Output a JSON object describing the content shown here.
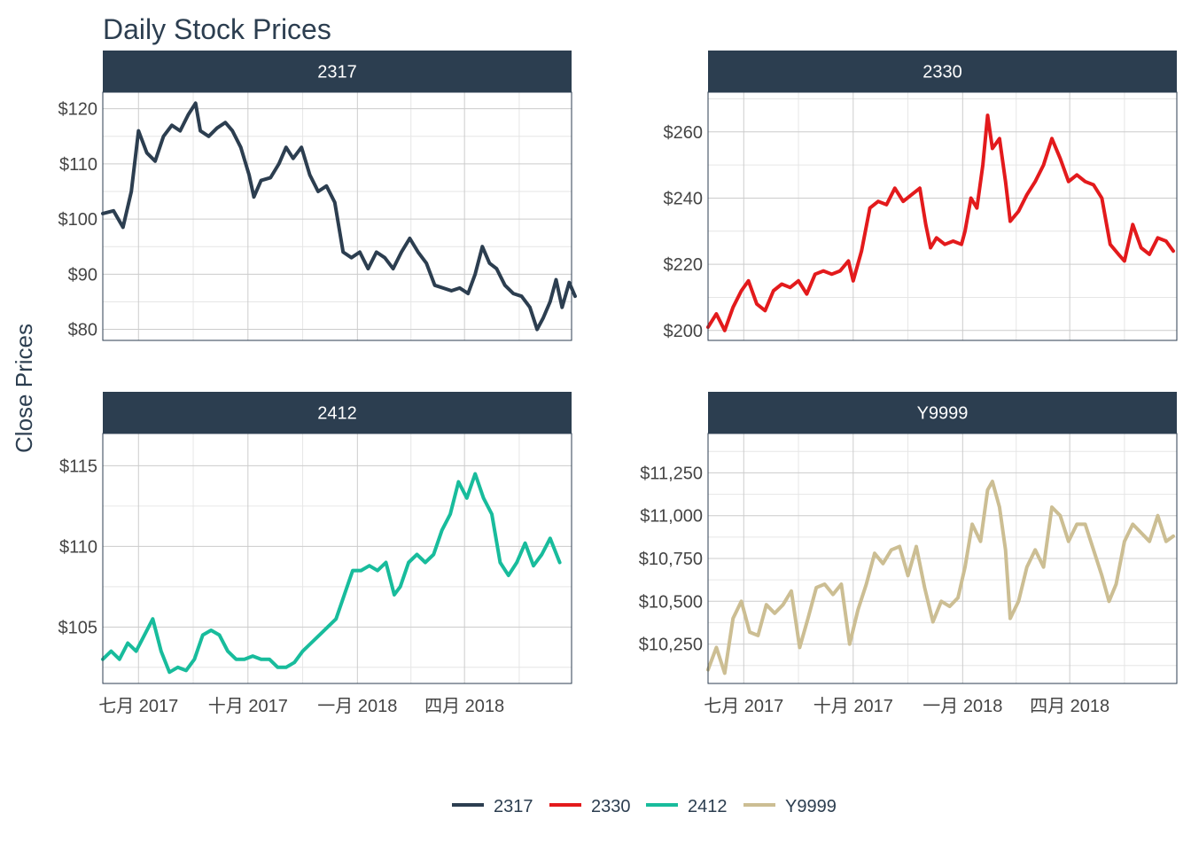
{
  "chart_data": {
    "type": "line",
    "title": "Daily Stock Prices",
    "ylabel": "Close Prices",
    "xlabel": "",
    "x_tick_labels": [
      "七月 2017",
      "十月 2017",
      "一月 2018",
      "四月 2018"
    ],
    "x_tick_dates": [
      "2017-07-01",
      "2017-10-01",
      "2018-01-01",
      "2018-04-01"
    ],
    "xlim": [
      "2017-06-01",
      "2018-06-30"
    ],
    "grid": true,
    "legend_position": "bottom",
    "legend": [
      "2317",
      "2330",
      "2412",
      "Y9999"
    ],
    "panels": [
      {
        "name": "2317",
        "color": "#2c3e50",
        "ylim": [
          78,
          123
        ],
        "y_ticks": [
          80,
          90,
          100,
          110,
          120
        ],
        "y_tick_labels": [
          "$80",
          "$90",
          "$100",
          "$110",
          "$120"
        ],
        "points": [
          [
            "2017-06-01",
            101
          ],
          [
            "2017-06-10",
            101.5
          ],
          [
            "2017-06-18",
            98.5
          ],
          [
            "2017-06-25",
            105
          ],
          [
            "2017-07-01",
            116
          ],
          [
            "2017-07-08",
            112
          ],
          [
            "2017-07-15",
            110.5
          ],
          [
            "2017-07-22",
            115
          ],
          [
            "2017-07-29",
            117
          ],
          [
            "2017-08-05",
            116
          ],
          [
            "2017-08-12",
            119
          ],
          [
            "2017-08-18",
            121
          ],
          [
            "2017-08-22",
            116
          ],
          [
            "2017-08-29",
            115
          ],
          [
            "2017-09-05",
            116.5
          ],
          [
            "2017-09-12",
            117.5
          ],
          [
            "2017-09-18",
            116
          ],
          [
            "2017-09-25",
            113
          ],
          [
            "2017-10-02",
            108
          ],
          [
            "2017-10-06",
            104
          ],
          [
            "2017-10-12",
            107
          ],
          [
            "2017-10-20",
            107.5
          ],
          [
            "2017-10-27",
            110
          ],
          [
            "2017-11-02",
            113
          ],
          [
            "2017-11-08",
            111
          ],
          [
            "2017-11-15",
            113
          ],
          [
            "2017-11-22",
            108
          ],
          [
            "2017-11-29",
            105
          ],
          [
            "2017-12-06",
            106
          ],
          [
            "2017-12-13",
            103
          ],
          [
            "2017-12-20",
            94
          ],
          [
            "2017-12-27",
            93
          ],
          [
            "2018-01-03",
            94
          ],
          [
            "2018-01-10",
            91
          ],
          [
            "2018-01-17",
            94
          ],
          [
            "2018-01-24",
            93
          ],
          [
            "2018-01-31",
            91
          ],
          [
            "2018-02-07",
            94
          ],
          [
            "2018-02-14",
            96.5
          ],
          [
            "2018-02-21",
            94
          ],
          [
            "2018-02-28",
            92
          ],
          [
            "2018-03-07",
            88
          ],
          [
            "2018-03-14",
            87.5
          ],
          [
            "2018-03-21",
            87
          ],
          [
            "2018-03-28",
            87.5
          ],
          [
            "2018-04-04",
            86.5
          ],
          [
            "2018-04-10",
            90
          ],
          [
            "2018-04-16",
            95
          ],
          [
            "2018-04-22",
            92
          ],
          [
            "2018-04-28",
            91
          ],
          [
            "2018-05-05",
            88
          ],
          [
            "2018-05-12",
            86.5
          ],
          [
            "2018-05-19",
            86
          ],
          [
            "2018-05-26",
            84
          ],
          [
            "2018-06-01",
            80
          ],
          [
            "2018-06-06",
            82
          ],
          [
            "2018-06-12",
            85
          ],
          [
            "2018-06-17",
            89
          ],
          [
            "2018-06-22",
            84
          ],
          [
            "2018-06-28",
            88.5
          ],
          [
            "2018-07-03",
            86
          ]
        ]
      },
      {
        "name": "2330",
        "color": "#e31a1c",
        "ylim": [
          197,
          272
        ],
        "y_ticks": [
          200,
          220,
          240,
          260
        ],
        "y_tick_labels": [
          "$200",
          "$220",
          "$240",
          "$260"
        ],
        "points": [
          [
            "2017-06-01",
            201
          ],
          [
            "2017-06-08",
            205
          ],
          [
            "2017-06-15",
            200
          ],
          [
            "2017-06-22",
            207
          ],
          [
            "2017-06-29",
            212
          ],
          [
            "2017-07-05",
            215
          ],
          [
            "2017-07-12",
            208
          ],
          [
            "2017-07-19",
            206
          ],
          [
            "2017-07-26",
            212
          ],
          [
            "2017-08-02",
            214
          ],
          [
            "2017-08-09",
            213
          ],
          [
            "2017-08-16",
            215
          ],
          [
            "2017-08-23",
            211
          ],
          [
            "2017-08-30",
            217
          ],
          [
            "2017-09-06",
            218
          ],
          [
            "2017-09-13",
            217
          ],
          [
            "2017-09-20",
            218
          ],
          [
            "2017-09-27",
            221
          ],
          [
            "2017-10-01",
            215
          ],
          [
            "2017-10-08",
            224
          ],
          [
            "2017-10-15",
            237
          ],
          [
            "2017-10-22",
            239
          ],
          [
            "2017-10-29",
            238
          ],
          [
            "2017-11-05",
            243
          ],
          [
            "2017-11-12",
            239
          ],
          [
            "2017-11-19",
            241
          ],
          [
            "2017-11-26",
            243
          ],
          [
            "2017-12-01",
            232
          ],
          [
            "2017-12-05",
            225
          ],
          [
            "2017-12-10",
            228
          ],
          [
            "2017-12-17",
            226
          ],
          [
            "2017-12-24",
            227
          ],
          [
            "2017-12-31",
            226
          ],
          [
            "2018-01-03",
            230
          ],
          [
            "2018-01-08",
            240
          ],
          [
            "2018-01-13",
            237
          ],
          [
            "2018-01-18",
            250
          ],
          [
            "2018-01-22",
            265
          ],
          [
            "2018-01-26",
            255
          ],
          [
            "2018-02-01",
            258
          ],
          [
            "2018-02-06",
            245
          ],
          [
            "2018-02-10",
            233
          ],
          [
            "2018-02-17",
            236
          ],
          [
            "2018-02-24",
            241
          ],
          [
            "2018-03-03",
            245
          ],
          [
            "2018-03-10",
            250
          ],
          [
            "2018-03-17",
            258
          ],
          [
            "2018-03-24",
            252
          ],
          [
            "2018-03-31",
            245
          ],
          [
            "2018-04-07",
            247
          ],
          [
            "2018-04-14",
            245
          ],
          [
            "2018-04-21",
            244
          ],
          [
            "2018-04-28",
            240
          ],
          [
            "2018-05-05",
            226
          ],
          [
            "2018-05-12",
            223
          ],
          [
            "2018-05-17",
            221
          ],
          [
            "2018-05-24",
            232
          ],
          [
            "2018-05-31",
            225
          ],
          [
            "2018-06-07",
            223
          ],
          [
            "2018-06-14",
            228
          ],
          [
            "2018-06-21",
            227
          ],
          [
            "2018-06-27",
            224
          ]
        ]
      },
      {
        "name": "2412",
        "color": "#18bc9c",
        "ylim": [
          101.5,
          117
        ],
        "y_ticks": [
          105,
          110,
          115
        ],
        "y_tick_labels": [
          "$105",
          "$110",
          "$115"
        ],
        "points": [
          [
            "2017-06-01",
            103
          ],
          [
            "2017-06-08",
            103.5
          ],
          [
            "2017-06-15",
            103
          ],
          [
            "2017-06-22",
            104
          ],
          [
            "2017-06-29",
            103.5
          ],
          [
            "2017-07-06",
            104.5
          ],
          [
            "2017-07-13",
            105.5
          ],
          [
            "2017-07-20",
            103.5
          ],
          [
            "2017-07-27",
            102.2
          ],
          [
            "2017-08-03",
            102.5
          ],
          [
            "2017-08-10",
            102.3
          ],
          [
            "2017-08-17",
            103
          ],
          [
            "2017-08-24",
            104.5
          ],
          [
            "2017-08-31",
            104.8
          ],
          [
            "2017-09-07",
            104.5
          ],
          [
            "2017-09-14",
            103.5
          ],
          [
            "2017-09-21",
            103
          ],
          [
            "2017-09-28",
            103
          ],
          [
            "2017-10-05",
            103.2
          ],
          [
            "2017-10-12",
            103
          ],
          [
            "2017-10-19",
            103
          ],
          [
            "2017-10-26",
            102.5
          ],
          [
            "2017-11-02",
            102.5
          ],
          [
            "2017-11-09",
            102.8
          ],
          [
            "2017-11-16",
            103.5
          ],
          [
            "2017-11-23",
            104
          ],
          [
            "2017-11-30",
            104.5
          ],
          [
            "2017-12-07",
            105
          ],
          [
            "2017-12-14",
            105.5
          ],
          [
            "2017-12-21",
            107
          ],
          [
            "2017-12-28",
            108.5
          ],
          [
            "2018-01-04",
            108.5
          ],
          [
            "2018-01-11",
            108.8
          ],
          [
            "2018-01-18",
            108.5
          ],
          [
            "2018-01-25",
            109
          ],
          [
            "2018-02-01",
            107
          ],
          [
            "2018-02-06",
            107.5
          ],
          [
            "2018-02-13",
            109
          ],
          [
            "2018-02-20",
            109.5
          ],
          [
            "2018-02-27",
            109
          ],
          [
            "2018-03-06",
            109.5
          ],
          [
            "2018-03-13",
            111
          ],
          [
            "2018-03-20",
            112
          ],
          [
            "2018-03-27",
            114
          ],
          [
            "2018-04-03",
            113
          ],
          [
            "2018-04-10",
            114.5
          ],
          [
            "2018-04-17",
            113
          ],
          [
            "2018-04-24",
            112
          ],
          [
            "2018-05-01",
            109
          ],
          [
            "2018-05-08",
            108.2
          ],
          [
            "2018-05-15",
            109
          ],
          [
            "2018-05-22",
            110.2
          ],
          [
            "2018-05-29",
            108.8
          ],
          [
            "2018-06-05",
            109.5
          ],
          [
            "2018-06-12",
            110.5
          ],
          [
            "2018-06-20",
            109
          ]
        ]
      },
      {
        "name": "Y9999",
        "color": "#ccbe93",
        "ylim": [
          10020,
          11480
        ],
        "y_ticks": [
          10250,
          10500,
          10750,
          11000,
          11250
        ],
        "y_tick_labels": [
          "$10,250",
          "$10,500",
          "$10,750",
          "$11,000",
          "$11,250"
        ],
        "points": [
          [
            "2017-06-01",
            10100
          ],
          [
            "2017-06-08",
            10230
          ],
          [
            "2017-06-15",
            10080
          ],
          [
            "2017-06-22",
            10400
          ],
          [
            "2017-06-29",
            10500
          ],
          [
            "2017-07-06",
            10320
          ],
          [
            "2017-07-13",
            10300
          ],
          [
            "2017-07-20",
            10480
          ],
          [
            "2017-07-27",
            10430
          ],
          [
            "2017-08-03",
            10480
          ],
          [
            "2017-08-10",
            10560
          ],
          [
            "2017-08-17",
            10230
          ],
          [
            "2017-08-24",
            10400
          ],
          [
            "2017-08-31",
            10580
          ],
          [
            "2017-09-07",
            10600
          ],
          [
            "2017-09-14",
            10540
          ],
          [
            "2017-09-21",
            10600
          ],
          [
            "2017-09-28",
            10250
          ],
          [
            "2017-10-05",
            10450
          ],
          [
            "2017-10-12",
            10600
          ],
          [
            "2017-10-19",
            10780
          ],
          [
            "2017-10-26",
            10720
          ],
          [
            "2017-11-02",
            10800
          ],
          [
            "2017-11-09",
            10820
          ],
          [
            "2017-11-16",
            10650
          ],
          [
            "2017-11-23",
            10820
          ],
          [
            "2017-11-30",
            10580
          ],
          [
            "2017-12-07",
            10380
          ],
          [
            "2017-12-14",
            10500
          ],
          [
            "2017-12-21",
            10470
          ],
          [
            "2017-12-28",
            10520
          ],
          [
            "2018-01-03",
            10700
          ],
          [
            "2018-01-09",
            10950
          ],
          [
            "2018-01-16",
            10850
          ],
          [
            "2018-01-22",
            11150
          ],
          [
            "2018-01-26",
            11200
          ],
          [
            "2018-02-01",
            11050
          ],
          [
            "2018-02-06",
            10800
          ],
          [
            "2018-02-10",
            10400
          ],
          [
            "2018-02-17",
            10500
          ],
          [
            "2018-02-24",
            10700
          ],
          [
            "2018-03-03",
            10800
          ],
          [
            "2018-03-10",
            10700
          ],
          [
            "2018-03-17",
            11050
          ],
          [
            "2018-03-24",
            11000
          ],
          [
            "2018-03-31",
            10850
          ],
          [
            "2018-04-07",
            10950
          ],
          [
            "2018-04-14",
            10950
          ],
          [
            "2018-04-21",
            10800
          ],
          [
            "2018-04-28",
            10650
          ],
          [
            "2018-05-04",
            10500
          ],
          [
            "2018-05-10",
            10600
          ],
          [
            "2018-05-17",
            10850
          ],
          [
            "2018-05-24",
            10950
          ],
          [
            "2018-05-31",
            10900
          ],
          [
            "2018-06-07",
            10850
          ],
          [
            "2018-06-14",
            11000
          ],
          [
            "2018-06-21",
            10850
          ],
          [
            "2018-06-27",
            10880
          ]
        ]
      }
    ]
  }
}
